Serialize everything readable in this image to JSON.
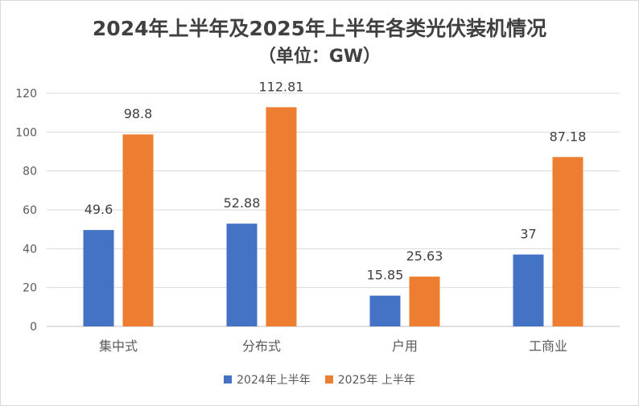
{
  "chart_data": {
    "type": "bar",
    "title": "2024年上半年及2025年上半年各类光伏装机情况",
    "subtitle": "（单位：GW）",
    "categories": [
      "集中式",
      "分布式",
      "户用",
      "工商业"
    ],
    "series": [
      {
        "name": "2024年上半年",
        "color": "#4472C4",
        "values": [
          49.6,
          52.88,
          15.85,
          37
        ]
      },
      {
        "name": "2025年 上半年",
        "color": "#ED7D31",
        "values": [
          98.8,
          112.81,
          25.63,
          87.18
        ]
      }
    ],
    "ylim": [
      0,
      120
    ],
    "yticks": [
      0,
      20,
      40,
      60,
      80,
      100,
      120
    ],
    "grid": true,
    "legend_position": "bottom"
  }
}
